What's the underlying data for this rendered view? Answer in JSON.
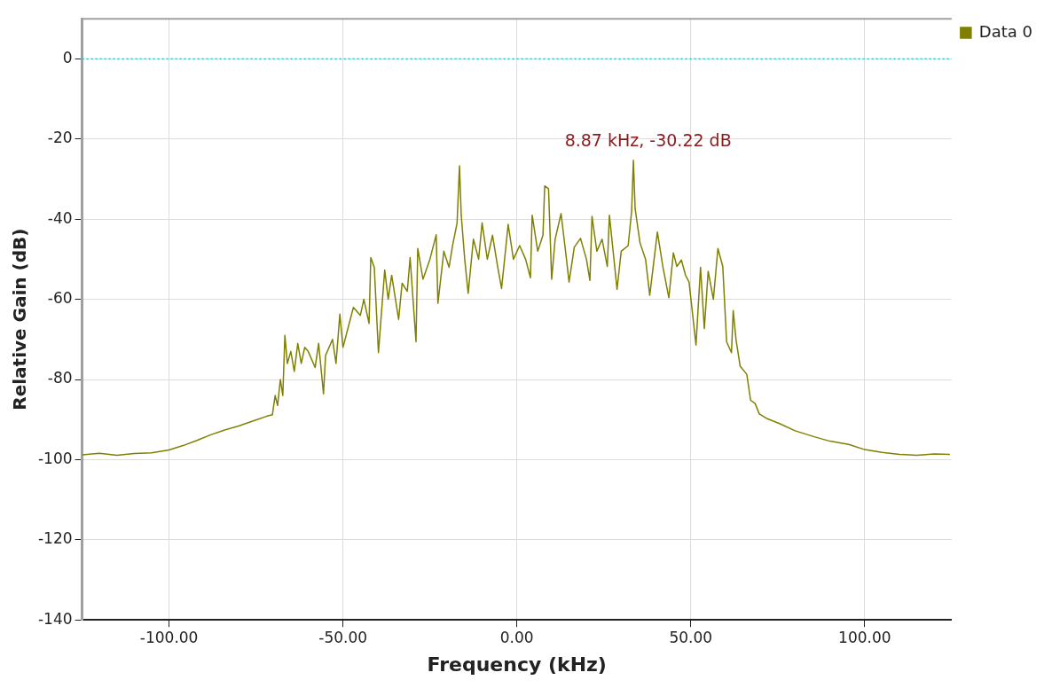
{
  "chart_data": {
    "type": "line",
    "xlabel": "Frequency (kHz)",
    "ylabel": "Relative Gain (dB)",
    "x": [
      -125,
      -120,
      -115,
      -110,
      -105,
      -100,
      -96,
      -92,
      -88,
      -84,
      -80,
      -76,
      -72,
      -70.3,
      -69.5,
      -68.8,
      -68,
      -67.3,
      -66.7,
      -66,
      -65,
      -64,
      -63,
      -62,
      -61,
      -60,
      -58,
      -57,
      -55.6,
      -55,
      -53,
      -52,
      -50.9,
      -50,
      -48.5,
      -47,
      -45,
      -44,
      -42.5,
      -42,
      -41,
      -39.8,
      -38,
      -37,
      -36,
      -34,
      -33,
      -31.5,
      -30.7,
      -29,
      -28.5,
      -27,
      -25,
      -23.2,
      -22.7,
      -21,
      -19.5,
      -18.5,
      -17.2,
      -16.5,
      -16,
      -15,
      -14,
      -12.5,
      -11,
      -10,
      -8.5,
      -7,
      -5.5,
      -4.4,
      -2.5,
      -1,
      0.8,
      2.5,
      3.9,
      4.4,
      6,
      7.5,
      8,
      9.1,
      10,
      11,
      12.7,
      14,
      15,
      16.5,
      18.3,
      20,
      21,
      21.6,
      23,
      24.5,
      26,
      26.6,
      28.8,
      30,
      32,
      33,
      33.5,
      34,
      35.4,
      37,
      38.2,
      40.4,
      42,
      43.7,
      45,
      46,
      47.3,
      48.5,
      49.5,
      51.5,
      52.8,
      53.9,
      55,
      56.5,
      57.8,
      59.2,
      60.3,
      61.7,
      62.2,
      63,
      64.2,
      66.1,
      67.2,
      68.5,
      69.7,
      72,
      75.5,
      80,
      85.5,
      90,
      95.4,
      100,
      105,
      110,
      115,
      120,
      124.5
    ],
    "series": [
      {
        "name": "Data 0",
        "color": "#808000",
        "values": [
          -98.8,
          -98.4,
          -98.9,
          -98.5,
          -98.3,
          -97.6,
          -96.5,
          -95.2,
          -93.8,
          -92.6,
          -91.6,
          -90.4,
          -89.2,
          -88.8,
          -84,
          -86.5,
          -80,
          -84,
          -69,
          -76,
          -73,
          -78,
          -71,
          -76,
          -72,
          -73,
          -77,
          -71,
          -83.6,
          -74,
          -70,
          -76,
          -63.7,
          -72,
          -67,
          -62,
          -64,
          -60,
          -66,
          -49.6,
          -52,
          -73.3,
          -52.7,
          -60,
          -54,
          -65,
          -56,
          -58,
          -49.6,
          -70.6,
          -47.3,
          -55,
          -50,
          -43.9,
          -61,
          -48,
          -52,
          -46.6,
          -41,
          -26.7,
          -39,
          -50,
          -58.5,
          -45,
          -50,
          -40.9,
          -50,
          -44,
          -52,
          -57.3,
          -41.3,
          -50,
          -46.6,
          -50,
          -54.6,
          -39,
          -48,
          -44,
          -31.7,
          -32.4,
          -55,
          -45,
          -38.6,
          -48,
          -55.7,
          -47,
          -44.8,
          -50,
          -55.3,
          -39.3,
          -48,
          -45,
          -51.8,
          -39,
          -57.5,
          -48,
          -46.6,
          -38,
          -25.3,
          -37.4,
          -45.9,
          -50,
          -59,
          -43.2,
          -52,
          -59.6,
          -48.4,
          -51.8,
          -50.2,
          -54,
          -55.7,
          -71.4,
          -52,
          -67.3,
          -53,
          -60,
          -47.3,
          -51.8,
          -70.6,
          -73.3,
          -62.8,
          -70,
          -76.7,
          -78.7,
          -85.2,
          -86,
          -88.6,
          -89.8,
          -91,
          -92.8,
          -94.3,
          -95.4,
          -96.2,
          -97.5,
          -98.2,
          -98.7,
          -98.9,
          -98.6,
          -98.7
        ]
      }
    ],
    "xlim": [
      -125,
      125
    ],
    "xticks": [
      {
        "value": -100,
        "label": "-100.00"
      },
      {
        "value": -50,
        "label": "-50.00"
      },
      {
        "value": 0,
        "label": "0.00"
      },
      {
        "value": 50,
        "label": "50.00"
      },
      {
        "value": 100,
        "label": "100.00"
      }
    ],
    "ylim": [
      -140,
      10
    ],
    "yticks": [
      -140,
      -120,
      -100,
      -80,
      -60,
      -40,
      -20,
      0
    ],
    "ref_lines": [
      {
        "axis": "y",
        "value": 0,
        "color": "#00c8c8",
        "line_style": "dotted"
      }
    ],
    "annotations": [
      "8.87 kHz, -30.22 dB"
    ],
    "grid": true,
    "legend": "top right",
    "marker": "none",
    "line_style": "solid"
  }
}
